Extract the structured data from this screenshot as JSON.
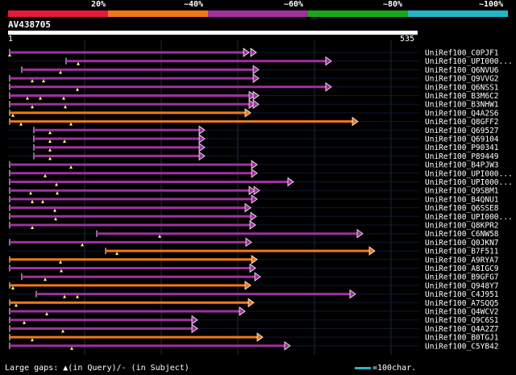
{
  "legend": {
    "labels": [
      "20%",
      "~40%",
      "~60%",
      "~80%",
      "~100%"
    ],
    "colors": [
      "#e8183c",
      "#f07818",
      "#a030a0",
      "#18a818",
      "#24b4c8"
    ]
  },
  "query": {
    "title": "AV438705",
    "start": "1",
    "end": "535"
  },
  "footer": {
    "gaps_prefix": "Large gaps: ",
    "gaps_query": "(in Query)/",
    "gaps_subject": "- (in Subject)",
    "scale_label": "=100char."
  },
  "rows": [
    {
      "name": "UniRef100_C0PJF1",
      "identity": "~60%"
    },
    {
      "name": "UniRef100_UPI000...",
      "identity": "~60%"
    },
    {
      "name": "UniRef100_Q6NVU6",
      "identity": "~60%"
    },
    {
      "name": "UniRef100_Q9VVG2",
      "identity": "~60%"
    },
    {
      "name": "UniRef100_Q6NSS1",
      "identity": "~60%"
    },
    {
      "name": "UniRef100_B3M6C2",
      "identity": "~60%"
    },
    {
      "name": "UniRef100_B3NHW1",
      "identity": "~60%"
    },
    {
      "name": "UniRef100_Q4A2S6",
      "identity": "~40%"
    },
    {
      "name": "UniRef100_Q8GFF2",
      "identity": "~40%"
    },
    {
      "name": "UniRef100_Q69527",
      "identity": "~60%"
    },
    {
      "name": "UniRef100_Q69104",
      "identity": "~60%"
    },
    {
      "name": "UniRef100_P90341",
      "identity": "~60%"
    },
    {
      "name": "UniRef100_P89449",
      "identity": "~60%"
    },
    {
      "name": "UniRef100_B4PJW3",
      "identity": "~60%"
    },
    {
      "name": "UniRef100_UPI000...",
      "identity": "~60%"
    },
    {
      "name": "UniRef100_UPI000...",
      "identity": "~60%"
    },
    {
      "name": "UniRef100_Q9SBM1",
      "identity": "~60%"
    },
    {
      "name": "UniRef100_B4QNU1",
      "identity": "~60%"
    },
    {
      "name": "UniRef100_Q6SSE8",
      "identity": "~60%"
    },
    {
      "name": "UniRef100_UPI000...",
      "identity": "~60%"
    },
    {
      "name": "UniRef100_Q8KPR2",
      "identity": "~60%"
    },
    {
      "name": "UniRef100_C6NW58",
      "identity": "~60%"
    },
    {
      "name": "UniRef100_Q0JKN7",
      "identity": "~60%"
    },
    {
      "name": "UniRef100_B7F511",
      "identity": "~40%"
    },
    {
      "name": "UniRef100_A9RYA7",
      "identity": "~40%"
    },
    {
      "name": "UniRef100_A8IGC9",
      "identity": "~60%"
    },
    {
      "name": "UniRef100_B9GFG7",
      "identity": "~60%"
    },
    {
      "name": "UniRef100_Q948Y7",
      "identity": "~40%"
    },
    {
      "name": "UniRef100_C4J951",
      "identity": "~60%"
    },
    {
      "name": "UniRef100_A7SQQ5",
      "identity": "~40%"
    },
    {
      "name": "UniRef100_Q4WCV2",
      "identity": "~60%"
    },
    {
      "name": "UniRef100_Q9C6S1",
      "identity": "~60%"
    },
    {
      "name": "UniRef100_Q4A2Z7",
      "identity": "~60%"
    },
    {
      "name": "UniRef100_B0TGJ1",
      "identity": "~40%"
    },
    {
      "name": "UniRef100_C5YB42",
      "identity": "~60%"
    }
  ]
}
